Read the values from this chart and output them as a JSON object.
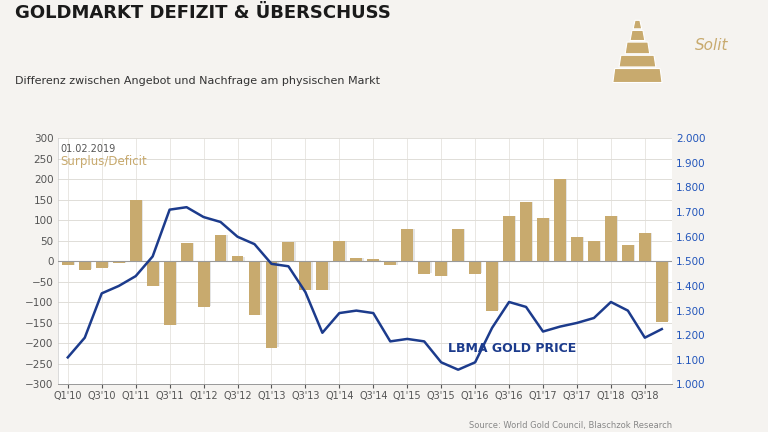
{
  "title": "GOLDMARKT DEFIZIT & ÜBERSCHUSS",
  "subtitle": "Differenz zwischen Angebot und Nachfrage am physischen Markt",
  "date_label": "01.02.2019",
  "surplus_label": "Surplus/Deficit",
  "lbma_label": "LBMA GOLD PRICE",
  "source_text": "Source: World Gold Council, Blaschzok Research",
  "bar_color": "#C8AA6E",
  "line_color": "#1C3B8C",
  "bg_color": "#f5f3f0",
  "chart_bg": "#ffffff",
  "title_color": "#1a1a1a",
  "subtitle_color": "#333333",
  "surplus_color": "#C8AA6E",
  "lbma_color": "#1C3B8C",
  "grid_color": "#e0ddd8",
  "ylim_left": [
    -300,
    300
  ],
  "ylim_right": [
    1000,
    2000
  ],
  "bar_data": [
    -10,
    -20,
    -15,
    -5,
    150,
    -60,
    -155,
    45,
    -110,
    65,
    12,
    -130,
    -210,
    48,
    -70,
    -70,
    50,
    8,
    5,
    -10,
    80,
    -30,
    -35,
    80,
    -30,
    -120,
    110,
    145,
    105,
    200,
    60,
    50,
    110,
    40,
    70,
    -147
  ],
  "gold_price_y": [
    1110,
    1190,
    1370,
    1400,
    1440,
    1520,
    1710,
    1720,
    1680,
    1660,
    1600,
    1570,
    1490,
    1480,
    1375,
    1210,
    1290,
    1300,
    1290,
    1175,
    1185,
    1175,
    1090,
    1060,
    1090,
    1230,
    1335,
    1315,
    1215,
    1235,
    1250,
    1270,
    1335,
    1300,
    1190,
    1225
  ],
  "xtick_positions": [
    0,
    2,
    4,
    6,
    8,
    10,
    12,
    14,
    16,
    18,
    20,
    22,
    24,
    26,
    28,
    30,
    32,
    34
  ],
  "xtick_labels": [
    "Q1'10",
    "Q3'10",
    "Q1'11",
    "Q3'11",
    "Q1'12",
    "Q3'12",
    "Q1'13",
    "Q3'13",
    "Q1'14",
    "Q3'14",
    "Q1'15",
    "Q3'15",
    "Q1'16",
    "Q3'16",
    "Q1'17",
    "Q3'17",
    "Q1'18",
    "Q3'18"
  ],
  "yticks_left": [
    -300,
    -250,
    -200,
    -150,
    -100,
    -50,
    0,
    50,
    100,
    150,
    200,
    250,
    300
  ],
  "yticks_right": [
    1000,
    1100,
    1200,
    1300,
    1400,
    1500,
    1600,
    1700,
    1800,
    1900,
    2000
  ]
}
